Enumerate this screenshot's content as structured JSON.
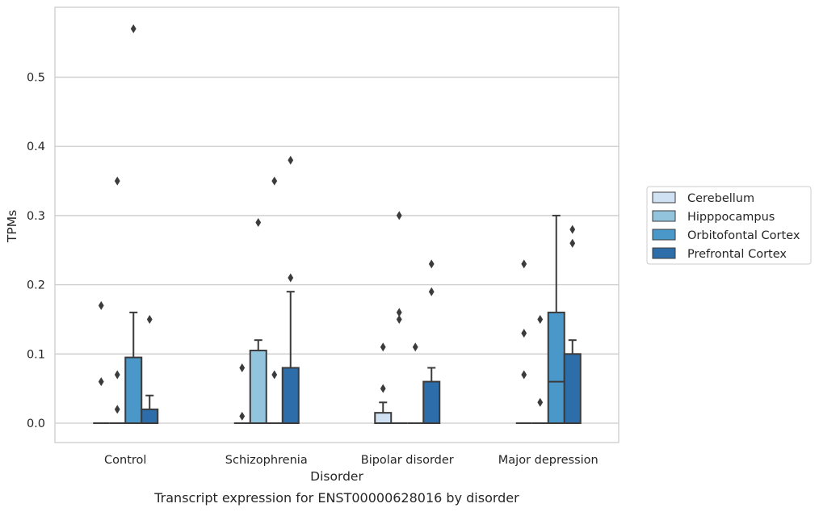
{
  "chart_data": {
    "type": "boxplot",
    "title": "Transcript expression for ENST00000628016 by disorder",
    "xlabel": "Disorder",
    "ylabel": "TPMs",
    "ylim": [
      -0.028,
      0.601
    ],
    "yticks": [
      0.0,
      0.1,
      0.2,
      0.3,
      0.4,
      0.5
    ],
    "ytick_labels": [
      "0.0",
      "0.1",
      "0.2",
      "0.3",
      "0.4",
      "0.5"
    ],
    "categories": [
      "Control",
      "Schizophrenia",
      "Bipolar disorder",
      "Major depression"
    ],
    "grid": "horizontal",
    "legend_position": "center-right, outside plot",
    "series": [
      {
        "name": "Cerebellum",
        "color": "#cfe1f2",
        "boxes": [
          {
            "q1": 0,
            "median": 0,
            "q3": 0,
            "whisker_low": 0,
            "whisker_high": 0,
            "outliers": [
              0.17,
              0.06
            ]
          },
          {
            "q1": 0,
            "median": 0,
            "q3": 0,
            "whisker_low": 0,
            "whisker_high": 0,
            "outliers": [
              0.08,
              0.01
            ]
          },
          {
            "q1": 0,
            "median": 0,
            "q3": 0.015,
            "whisker_low": 0,
            "whisker_high": 0.03,
            "outliers": [
              0.11,
              0.05
            ]
          },
          {
            "q1": 0,
            "median": 0,
            "q3": 0,
            "whisker_low": 0,
            "whisker_high": 0,
            "outliers": [
              0.23,
              0.13,
              0.07
            ]
          }
        ]
      },
      {
        "name": "Hipppocampus",
        "color": "#93c4de",
        "boxes": [
          {
            "q1": 0,
            "median": 0,
            "q3": 0,
            "whisker_low": 0,
            "whisker_high": 0,
            "outliers": [
              0.35,
              0.07,
              0.02
            ]
          },
          {
            "q1": 0,
            "median": 0,
            "q3": 0.105,
            "whisker_low": 0,
            "whisker_high": 0.12,
            "outliers": [
              0.29
            ]
          },
          {
            "q1": 0,
            "median": 0,
            "q3": 0,
            "whisker_low": 0,
            "whisker_high": 0,
            "outliers": [
              0.3,
              0.16,
              0.15
            ]
          },
          {
            "q1": 0,
            "median": 0,
            "q3": 0,
            "whisker_low": 0,
            "whisker_high": 0,
            "outliers": [
              0.15,
              0.03
            ]
          }
        ]
      },
      {
        "name": "Orbitofontal Cortex",
        "color": "#4a98c9",
        "boxes": [
          {
            "q1": 0,
            "median": 0,
            "q3": 0.095,
            "whisker_low": 0,
            "whisker_high": 0.16,
            "outliers": [
              0.57
            ]
          },
          {
            "q1": 0,
            "median": 0,
            "q3": 0,
            "whisker_low": 0,
            "whisker_high": 0,
            "outliers": [
              0.35,
              0.07
            ]
          },
          {
            "q1": 0,
            "median": 0,
            "q3": 0,
            "whisker_low": 0,
            "whisker_high": 0,
            "outliers": [
              0.11
            ]
          },
          {
            "q1": 0,
            "median": 0.06,
            "q3": 0.16,
            "whisker_low": 0,
            "whisker_high": 0.3,
            "outliers": []
          }
        ]
      },
      {
        "name": "Prefrontal Cortex",
        "color": "#2d6da9",
        "boxes": [
          {
            "q1": 0,
            "median": 0,
            "q3": 0.02,
            "whisker_low": 0,
            "whisker_high": 0.04,
            "outliers": [
              0.15
            ]
          },
          {
            "q1": 0,
            "median": 0,
            "q3": 0.08,
            "whisker_low": 0,
            "whisker_high": 0.19,
            "outliers": [
              0.38,
              0.21
            ]
          },
          {
            "q1": 0,
            "median": 0,
            "q3": 0.06,
            "whisker_low": 0,
            "whisker_high": 0.08,
            "outliers": [
              0.23,
              0.19
            ]
          },
          {
            "q1": 0,
            "median": 0,
            "q3": 0.1,
            "whisker_low": 0,
            "whisker_high": 0.12,
            "outliers": [
              0.28,
              0.26
            ]
          }
        ]
      }
    ]
  }
}
